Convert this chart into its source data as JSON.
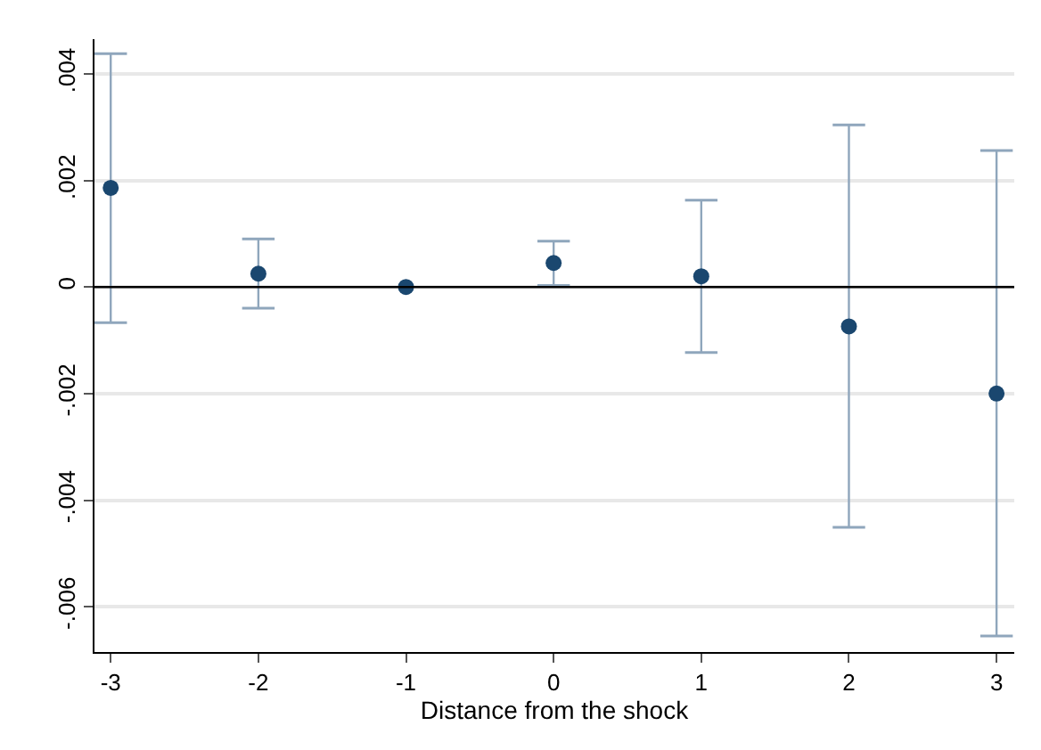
{
  "chart_data": {
    "type": "scatter",
    "xlabel": "Distance from the shock",
    "x": [
      -3,
      -2,
      -1,
      0,
      1,
      2,
      3
    ],
    "series": [
      {
        "color": "#1a476f",
        "values": [
          0.00186,
          0.00025,
          0,
          0.00045,
          0.0002,
          -0.00074,
          -0.002
        ],
        "errors": [
          [
            -0.00067,
            0.00438
          ],
          [
            -0.0004,
            0.0009
          ],
          null,
          [
            3e-05,
            0.00086
          ],
          [
            -0.00123,
            0.00163
          ],
          [
            -0.00451,
            0.00304
          ],
          [
            -0.00655,
            0.00256
          ]
        ]
      }
    ],
    "marker": "circle",
    "grid": "y",
    "xlim": [
      -3.11,
      3.12
    ],
    "xticks": [
      -3,
      -2,
      -1,
      0,
      1,
      2,
      3
    ],
    "ylim": [
      -0.00685,
      0.00465
    ],
    "yticks": [
      {
        "value": -0.006,
        "label": "-.006"
      },
      {
        "value": -0.004,
        "label": "-.004"
      },
      {
        "value": -0.002,
        "label": "-.002"
      },
      0,
      {
        "value": 0.002,
        "label": ".002"
      },
      {
        "value": 0.004,
        "label": ".004"
      }
    ],
    "ref_lines": [
      {
        "axis": "y",
        "value": 0,
        "color": "#000000"
      }
    ]
  }
}
